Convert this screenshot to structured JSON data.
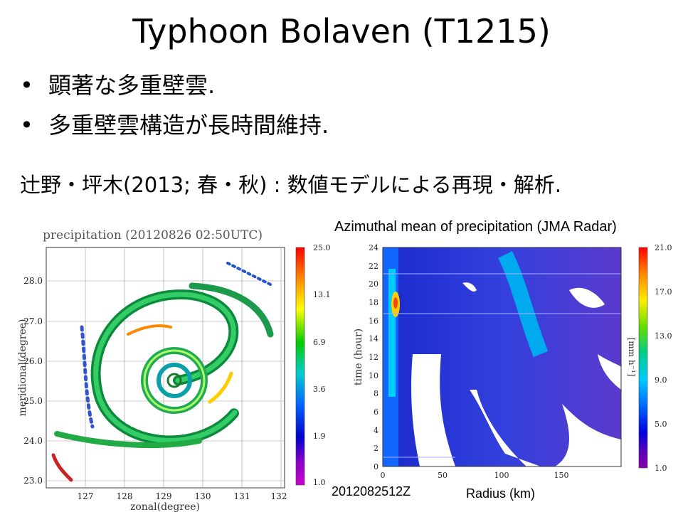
{
  "slide": {
    "title": "Typhoon Bolaven (T1215)",
    "bullets": [
      {
        "symbol": "•",
        "text": "顕著な多重壁雲."
      },
      {
        "symbol": "•",
        "text": "多重壁雲構造が長時間維持."
      }
    ],
    "reference": "辻野・坪木(2013; 春・秋) : 数値モデルによる再現・解析."
  },
  "left_figure": {
    "title": "precipitation (20120826 02:50UTC)",
    "xlabel": "zonal(degree)",
    "ylabel": "meridional(degree)",
    "x_ticks": [
      "127",
      "128",
      "129",
      "130",
      "131",
      "132"
    ],
    "y_ticks": [
      "28.0",
      "27.0",
      "26.0",
      "25.0",
      "24.0",
      "23.0"
    ],
    "colorbar_ticks": [
      "25.0",
      "13.1",
      "6.9",
      "3.6",
      "1.9",
      "1.0"
    ],
    "colorbar_colors": [
      "#ff0000",
      "#ff8800",
      "#ffff00",
      "#00cc00",
      "#00cccc",
      "#0066ff",
      "#0000cc",
      "#8800cc",
      "#cc00cc"
    ]
  },
  "right_figure": {
    "title": "Azimuthal mean of precipitation (JMA Radar)",
    "xlabel": "Radius (km)",
    "ylabel": "time (hour)",
    "x_ticks": [
      "0",
      "50",
      "100",
      "150"
    ],
    "y_ticks": [
      "24",
      "22",
      "20",
      "18",
      "16",
      "14",
      "12",
      "10",
      "8",
      "6",
      "4",
      "2",
      "0"
    ],
    "colorbar_ticks": [
      "21.0",
      "17.0",
      "13.0",
      "9.0",
      "5.0",
      "1.0"
    ],
    "colorbar_unit": "[mm h⁻¹]",
    "colorbar_colors": [
      "#ff0000",
      "#ff8800",
      "#ffee00",
      "#66dd00",
      "#00cc88",
      "#00ccff",
      "#0066ff",
      "#0000dd",
      "#5500bb",
      "#8800aa"
    ],
    "start_time_label": "2012082512Z"
  }
}
